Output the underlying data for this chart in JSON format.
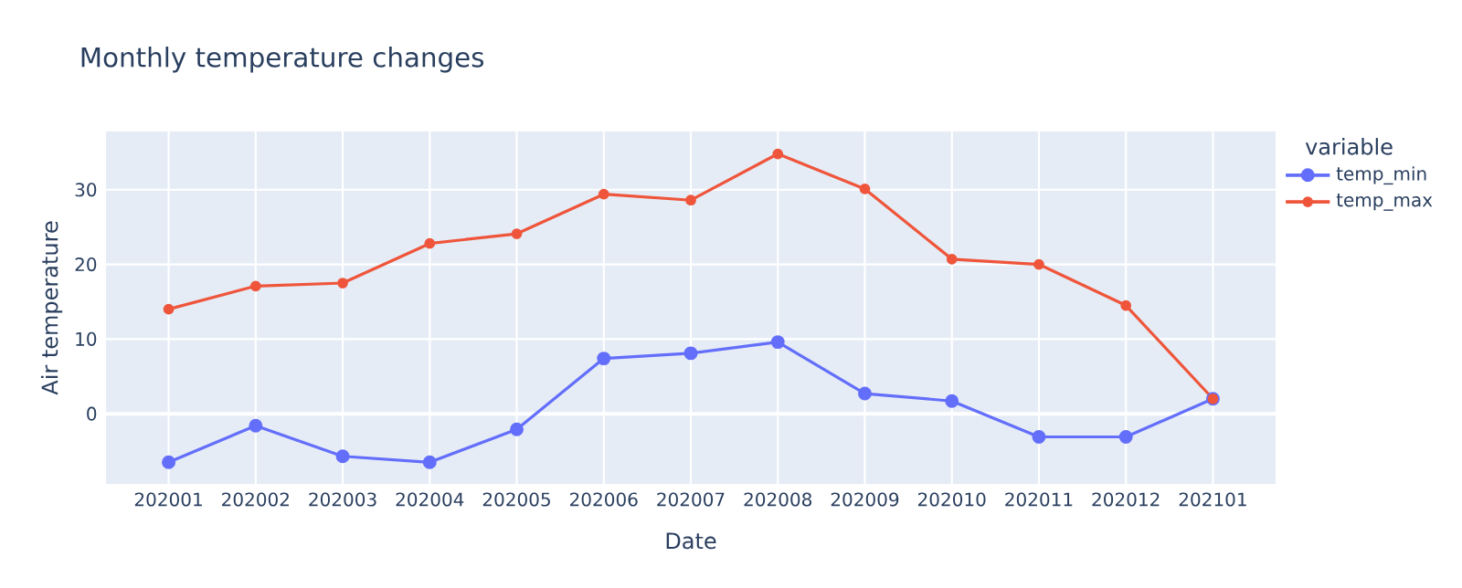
{
  "chart_data": {
    "type": "line",
    "title": "Monthly temperature changes",
    "xlabel": "Date",
    "ylabel": "Air temperature",
    "legend_title": "variable",
    "categories": [
      "202001",
      "202002",
      "202003",
      "202004",
      "202005",
      "202006",
      "202007",
      "202008",
      "202009",
      "202010",
      "202011",
      "202012",
      "202101"
    ],
    "series": [
      {
        "name": "temp_min",
        "color": "#636efa",
        "values": [
          -6.5,
          -1.6,
          -5.7,
          -6.5,
          -2.1,
          7.4,
          8.1,
          9.6,
          2.7,
          1.7,
          -3.1,
          -3.1,
          2.0
        ]
      },
      {
        "name": "temp_max",
        "color": "#ef553b",
        "values": [
          14.0,
          17.1,
          17.5,
          22.8,
          24.1,
          29.4,
          28.6,
          34.8,
          30.1,
          20.7,
          20.0,
          14.5,
          2.0
        ]
      }
    ],
    "ylim": [
      -9.4,
      37.8
    ],
    "yticks": [
      0,
      10,
      20,
      30
    ],
    "grid": true,
    "legend": "right",
    "marker": "circle",
    "line_style": "solid"
  }
}
